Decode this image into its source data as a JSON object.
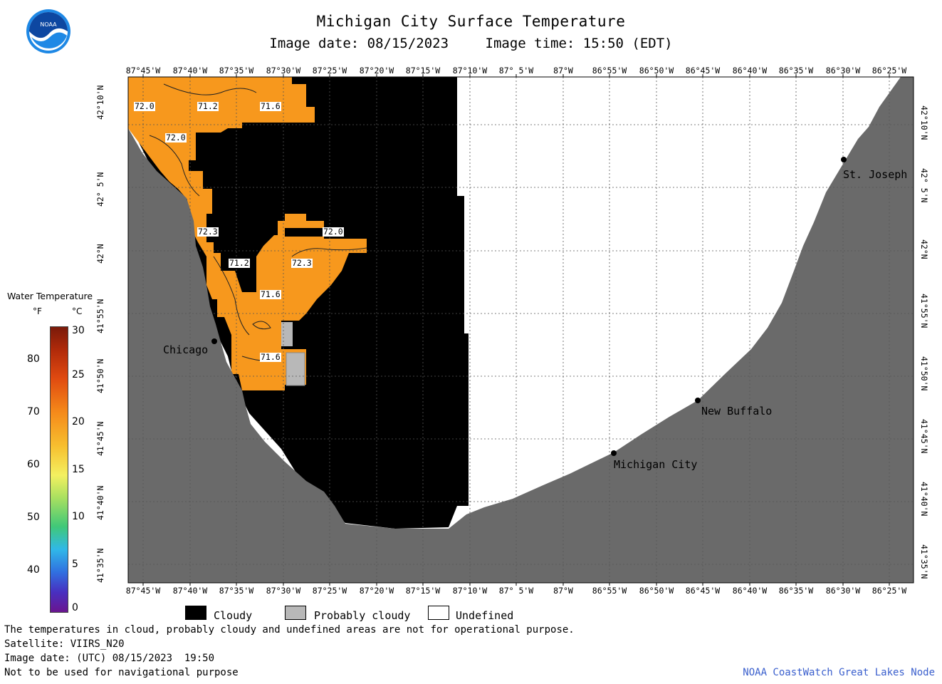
{
  "header": {
    "title": "Michigan City Surface Temperature",
    "image_date": "Image date: 08/15/2023",
    "image_time": "Image time: 15:50 (EDT)"
  },
  "logo": {
    "text": "NOAA",
    "colors": {
      "outer": "#1e88e5",
      "inner": "#0d47a1"
    }
  },
  "map": {
    "lon_labels": [
      "87°45'W",
      "87°40'W",
      "87°35'W",
      "87°30'W",
      "87°25'W",
      "87°20'W",
      "87°15'W",
      "87°10'W",
      "87° 5'W",
      "87°W",
      "86°55'W",
      "86°50'W",
      "86°45'W",
      "86°40'W",
      "86°35'W",
      "86°30'W",
      "86°25'W"
    ],
    "lat_labels": [
      "42°10'N",
      "42° 5'N",
      "42°N",
      "41°55'N",
      "41°50'N",
      "41°45'N",
      "41°40'N",
      "41°35'N"
    ],
    "cities": [
      {
        "name": "Chicago"
      },
      {
        "name": "St. Joseph"
      },
      {
        "name": "New Buffalo"
      },
      {
        "name": "Michigan City"
      }
    ],
    "temperature_labels": [
      "72.0",
      "71.2",
      "71.6",
      "72.0",
      "72.3",
      "72.0",
      "71.2",
      "72.3",
      "71.6",
      "71.6"
    ],
    "colors": {
      "land": "#6a6a6a",
      "cloud": "#000000",
      "water_warm": "#f7981d",
      "probably_cloudy": "#b8b8b8",
      "undefined": "#ffffff",
      "grid": "#555555"
    }
  },
  "colorbar": {
    "title": "Water Temperature",
    "unit_f": "°F",
    "unit_c": "°C",
    "f_ticks": [
      "80",
      "70",
      "60",
      "50",
      "40"
    ],
    "c_ticks": [
      "30",
      "25",
      "20",
      "15",
      "10",
      "5",
      "0"
    ]
  },
  "legend": {
    "cloudy": "Cloudy",
    "probably_cloudy": "Probably cloudy",
    "undefined": "Undefined"
  },
  "footer": {
    "line1": "The temperatures in cloud, probably cloudy and undefined areas are not for operational purpose.",
    "line2": "Satellite: VIIRS_N20",
    "line3": "Image date: (UTC) 08/15/2023  19:50",
    "line4": "Not to be used for navigational purpose",
    "credit": "NOAA CoastWatch Great Lakes Node"
  }
}
